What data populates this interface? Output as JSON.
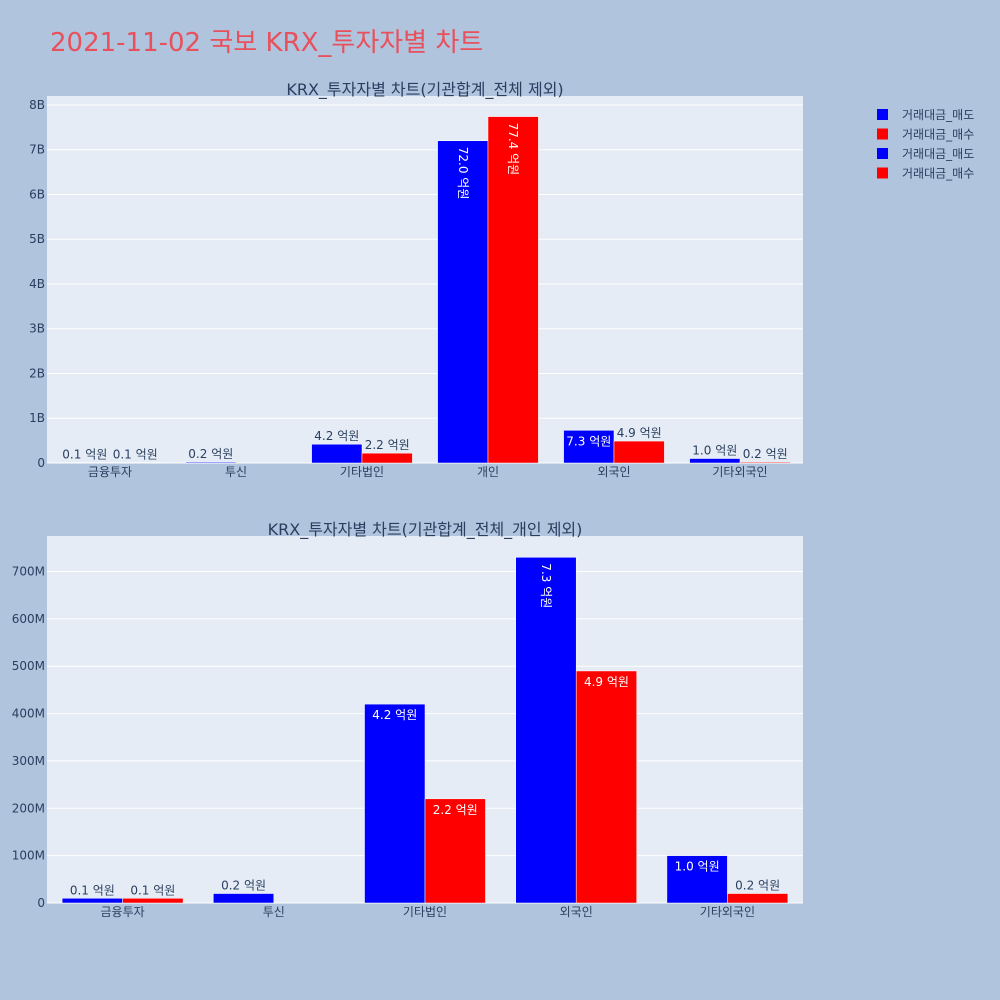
{
  "title": "2021-11-02 국보 KRX_투자자별 차트",
  "colors": {
    "sell": "#0000ff",
    "buy": "#ff0000",
    "plot_bg": "#e5ecf6",
    "page_bg": "#b0c4de",
    "title": "#e8505b"
  },
  "legend": [
    {
      "name": "거래대금_매도",
      "color": "#0000ff"
    },
    {
      "name": "거래대금_매수",
      "color": "#ff0000"
    },
    {
      "name": "거래대금_매도",
      "color": "#0000ff"
    },
    {
      "name": "거래대금_매수",
      "color": "#ff0000"
    }
  ],
  "chart_data": [
    {
      "type": "bar",
      "title": "KRX_투자자별 차트(기관합계_전체 제외)",
      "categories": [
        "금융투자",
        "투신",
        "기타법인",
        "개인",
        "외국인",
        "기타외국인"
      ],
      "series": [
        {
          "name": "거래대금_매도",
          "color": "#0000ff",
          "values": [
            10000000,
            20000000,
            420000000,
            7200000000,
            730000000,
            100000000
          ],
          "labels": [
            "0.1 억원",
            "0.2 억원",
            "4.2 억원",
            "72.0 억원",
            "7.3 억원",
            "1.0 억원"
          ]
        },
        {
          "name": "거래대금_매수",
          "color": "#ff0000",
          "values": [
            10000000,
            null,
            220000000,
            7740000000,
            490000000,
            20000000
          ],
          "labels": [
            "0.1 억원",
            "",
            "2.2 억원",
            "77.4 억원",
            "4.9 억원",
            "0.2 억원"
          ]
        }
      ],
      "ylim": [
        0,
        8200000000
      ],
      "yticks": [
        {
          "value": 0,
          "label": "0"
        },
        {
          "value": 1000000000,
          "label": "1B"
        },
        {
          "value": 2000000000,
          "label": "2B"
        },
        {
          "value": 3000000000,
          "label": "3B"
        },
        {
          "value": 4000000000,
          "label": "4B"
        },
        {
          "value": 5000000000,
          "label": "5B"
        },
        {
          "value": 6000000000,
          "label": "6B"
        },
        {
          "value": 7000000000,
          "label": "7B"
        },
        {
          "value": 8000000000,
          "label": "8B"
        }
      ],
      "grid": true
    },
    {
      "type": "bar",
      "title": "KRX_투자자별 차트(기관합계_전체_개인 제외)",
      "categories": [
        "금융투자",
        "투신",
        "기타법인",
        "외국인",
        "기타외국인"
      ],
      "series": [
        {
          "name": "거래대금_매도",
          "color": "#0000ff",
          "values": [
            10000000,
            20000000,
            420000000,
            730000000,
            100000000
          ],
          "labels": [
            "0.1 억원",
            "0.2 억원",
            "4.2 억원",
            "7.3 억원",
            "1.0 억원"
          ]
        },
        {
          "name": "거래대금_매수",
          "color": "#ff0000",
          "values": [
            10000000,
            null,
            220000000,
            490000000,
            20000000
          ],
          "labels": [
            "0.1 억원",
            "",
            "2.2 억원",
            "4.9 억원",
            "0.2 억원"
          ]
        }
      ],
      "ylim": [
        0,
        775000000
      ],
      "yticks": [
        {
          "value": 0,
          "label": "0"
        },
        {
          "value": 100000000,
          "label": "100M"
        },
        {
          "value": 200000000,
          "label": "200M"
        },
        {
          "value": 300000000,
          "label": "300M"
        },
        {
          "value": 400000000,
          "label": "400M"
        },
        {
          "value": 500000000,
          "label": "500M"
        },
        {
          "value": 600000000,
          "label": "600M"
        },
        {
          "value": 700000000,
          "label": "700M"
        }
      ],
      "grid": true
    }
  ]
}
